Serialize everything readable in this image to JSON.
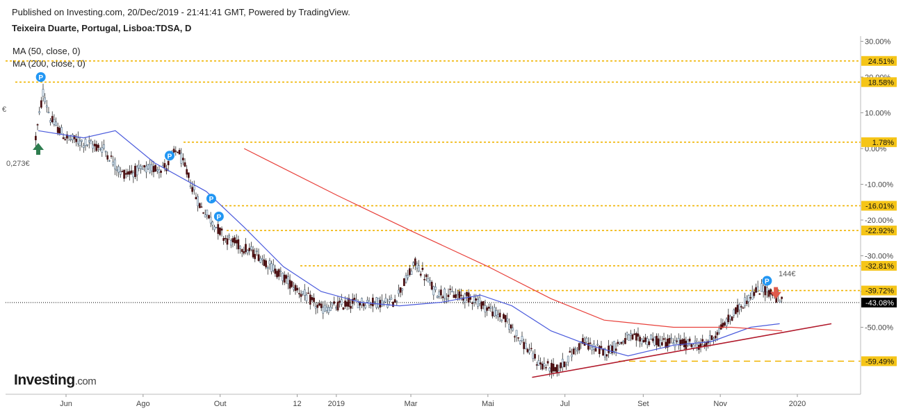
{
  "header": {
    "published": "Published on Investing.com, 20/Dec/2019 - 21:41:41 GMT, Powered by TradingView.",
    "symbol": "Teixeira Duarte, Portugal, Lisboa:TDSA, D"
  },
  "indicators": [
    "MA (50, close, 0)",
    "MA (200, close, 0)"
  ],
  "logo": {
    "main": "Investing",
    "suffix": ".com"
  },
  "price_labels": {
    "left": "0,273€",
    "right": "144€",
    "left_fragment": "€"
  },
  "colors": {
    "level_line": "#f0b400",
    "level_box": "#f5c518",
    "ma50": "#4a5adc",
    "ma200": "#e8403a",
    "trendline": "#b0182a",
    "candle_up": "#e8f0f6",
    "candle_down": "#4a0e10",
    "marker": "#2196f3",
    "arrow_up": "#2e7d4f",
    "arrow_down": "#e05a4a",
    "current": "#000000"
  },
  "chart_data": {
    "type": "candlestick",
    "x_ticks": [
      "Jun",
      "Ago",
      "Out",
      "12",
      "2019",
      "Mar",
      "Mai",
      "Jul",
      "Set",
      "Nov",
      "2020"
    ],
    "y_ticks": [
      "30.00%",
      "20.00%",
      "10.00%",
      "0.00%",
      "-10.00%",
      "-20.00%",
      "-30.00%",
      "-40.00%",
      "-50.00%"
    ],
    "y_unit": "percent change",
    "ylim": [
      -65,
      32
    ],
    "levels": [
      {
        "value": 24.51,
        "label": "24.51%",
        "style": "dotted"
      },
      {
        "value": 18.58,
        "label": "18.58%",
        "style": "dotted"
      },
      {
        "value": 1.78,
        "label": "1.78%",
        "style": "dotted"
      },
      {
        "value": -16.01,
        "label": "-16.01%",
        "style": "dotted"
      },
      {
        "value": -22.92,
        "label": "-22.92%",
        "style": "dotted"
      },
      {
        "value": -32.81,
        "label": "-32.81%",
        "style": "dotted"
      },
      {
        "value": -39.72,
        "label": "-39.72%",
        "style": "dotted"
      },
      {
        "value": -59.49,
        "label": "-59.49%",
        "style": "dashed"
      }
    ],
    "current": {
      "value": -43.08,
      "label": "-43.08%"
    },
    "series_close_approx": [
      {
        "date": "2018-05-08",
        "y": 3
      },
      {
        "date": "2018-05-14",
        "y": 16
      },
      {
        "date": "2018-05-20",
        "y": 8
      },
      {
        "date": "2018-06-01",
        "y": 3
      },
      {
        "date": "2018-07-01",
        "y": 0
      },
      {
        "date": "2018-07-15",
        "y": -7
      },
      {
        "date": "2018-08-20",
        "y": -5
      },
      {
        "date": "2018-08-28",
        "y": 0
      },
      {
        "date": "2018-09-15",
        "y": -16
      },
      {
        "date": "2018-10-05",
        "y": -25
      },
      {
        "date": "2018-11-01",
        "y": -30
      },
      {
        "date": "2018-11-20",
        "y": -36
      },
      {
        "date": "2018-12-20",
        "y": -45
      },
      {
        "date": "2019-01-15",
        "y": -43
      },
      {
        "date": "2019-02-15",
        "y": -43
      },
      {
        "date": "2019-03-05",
        "y": -32
      },
      {
        "date": "2019-03-20",
        "y": -40
      },
      {
        "date": "2019-04-20",
        "y": -42
      },
      {
        "date": "2019-05-15",
        "y": -48
      },
      {
        "date": "2019-06-10",
        "y": -60
      },
      {
        "date": "2019-06-25",
        "y": -62
      },
      {
        "date": "2019-07-15",
        "y": -54
      },
      {
        "date": "2019-08-01",
        "y": -57
      },
      {
        "date": "2019-08-20",
        "y": -53
      },
      {
        "date": "2019-09-15",
        "y": -54
      },
      {
        "date": "2019-10-20",
        "y": -55
      },
      {
        "date": "2019-11-10",
        "y": -47
      },
      {
        "date": "2019-11-25",
        "y": -41
      },
      {
        "date": "2019-12-05",
        "y": -39
      },
      {
        "date": "2019-12-20",
        "y": -43
      }
    ],
    "ma50_approx": [
      {
        "date": "2018-05-10",
        "y": 5
      },
      {
        "date": "2018-06-15",
        "y": 3
      },
      {
        "date": "2018-07-10",
        "y": 5
      },
      {
        "date": "2018-08-10",
        "y": -4
      },
      {
        "date": "2018-09-20",
        "y": -12
      },
      {
        "date": "2018-10-20",
        "y": -22
      },
      {
        "date": "2018-11-20",
        "y": -33
      },
      {
        "date": "2018-12-20",
        "y": -40
      },
      {
        "date": "2019-01-20",
        "y": -43
      },
      {
        "date": "2019-02-20",
        "y": -44
      },
      {
        "date": "2019-03-25",
        "y": -43
      },
      {
        "date": "2019-04-25",
        "y": -41
      },
      {
        "date": "2019-05-20",
        "y": -44
      },
      {
        "date": "2019-06-20",
        "y": -51
      },
      {
        "date": "2019-07-20",
        "y": -55
      },
      {
        "date": "2019-08-20",
        "y": -58
      },
      {
        "date": "2019-09-25",
        "y": -55
      },
      {
        "date": "2019-10-25",
        "y": -54
      },
      {
        "date": "2019-11-25",
        "y": -50
      },
      {
        "date": "2019-12-18",
        "y": -49
      }
    ],
    "ma200_approx": [
      {
        "date": "2018-10-20",
        "y": 0
      },
      {
        "date": "2019-01-01",
        "y": -13
      },
      {
        "date": "2019-03-01",
        "y": -23
      },
      {
        "date": "2019-05-01",
        "y": -33
      },
      {
        "date": "2019-06-20",
        "y": -42
      },
      {
        "date": "2019-08-01",
        "y": -48
      },
      {
        "date": "2019-09-25",
        "y": -50
      },
      {
        "date": "2019-11-10",
        "y": -50
      },
      {
        "date": "2019-12-20",
        "y": -51
      }
    ],
    "trendline": [
      {
        "date": "2019-06-05",
        "y": -64
      },
      {
        "date": "2020-01-28",
        "y": -49
      }
    ],
    "markers": [
      {
        "type": "P",
        "date": "2018-05-12",
        "y": 20
      },
      {
        "type": "P",
        "date": "2018-08-22",
        "y": -2
      },
      {
        "type": "P",
        "date": "2018-09-24",
        "y": -14
      },
      {
        "type": "P",
        "date": "2018-09-30",
        "y": -19
      },
      {
        "type": "P",
        "date": "2019-12-08",
        "y": -37
      }
    ]
  }
}
